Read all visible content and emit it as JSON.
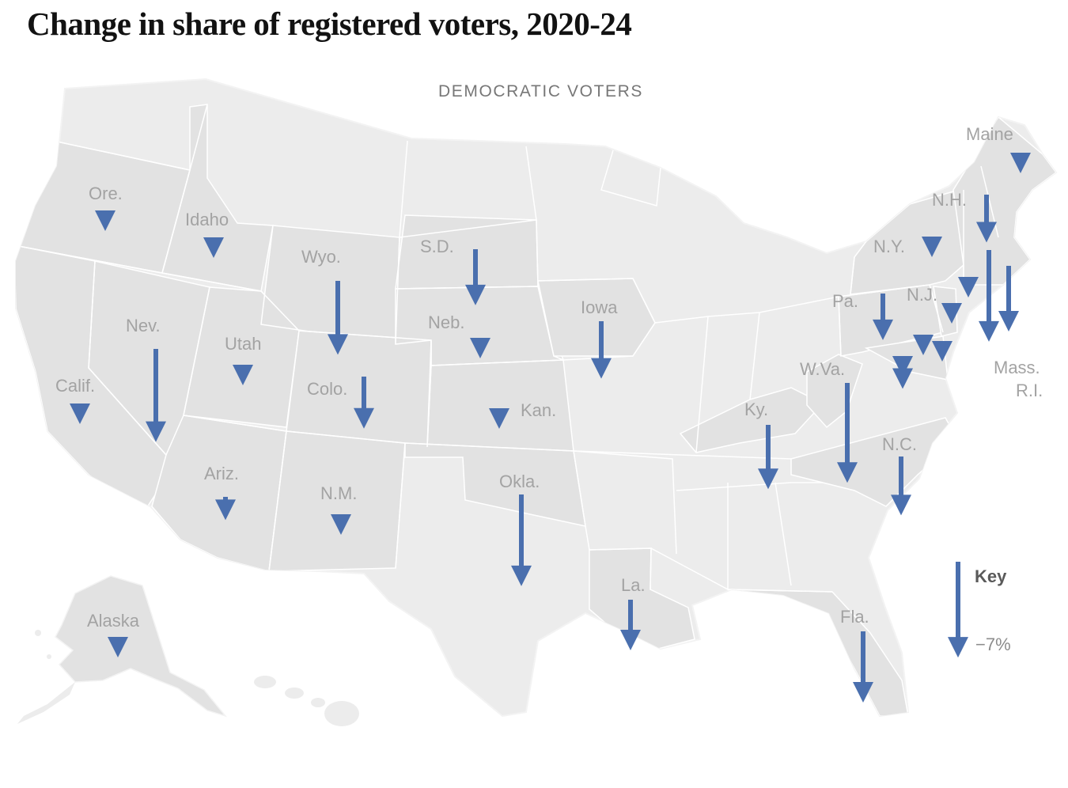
{
  "title": "Change in share of registered voters, 2020-24",
  "subtitle": "DEMOCRATIC VOTERS",
  "colors": {
    "arrow": "#4a6fae",
    "land": "#ececec",
    "highlight": "#e2e2e2",
    "border": "#ffffff",
    "label": "#a3a3a3"
  },
  "key": {
    "title": "Key",
    "value_label": "−7%",
    "value": -7
  },
  "states": [
    {
      "label": "Ore."
    },
    {
      "label": "Idaho"
    },
    {
      "label": "Wyo."
    },
    {
      "label": "S.D."
    },
    {
      "label": "Neb."
    },
    {
      "label": "Iowa"
    },
    {
      "label": "Nev."
    },
    {
      "label": "Utah"
    },
    {
      "label": "Calif."
    },
    {
      "label": "Colo."
    },
    {
      "label": "Kan."
    },
    {
      "label": "Ariz."
    },
    {
      "label": "N.M."
    },
    {
      "label": "Okla."
    },
    {
      "label": "La."
    },
    {
      "label": "Alaska"
    },
    {
      "label": "Ky."
    },
    {
      "label": "W.Va."
    },
    {
      "label": "N.C."
    },
    {
      "label": "Fla."
    },
    {
      "label": "Pa."
    },
    {
      "label": "N.J."
    },
    {
      "label": "N.Y."
    },
    {
      "label": "N.H."
    },
    {
      "label": "Maine"
    },
    {
      "label": "Mass."
    },
    {
      "label": "R.I."
    }
  ],
  "arrows": [
    {
      "state": "Ore.",
      "change": -1.4
    },
    {
      "state": "Idaho",
      "change": -1.0
    },
    {
      "state": "Wyo.",
      "change": -5.4
    },
    {
      "state": "S.D.",
      "change": -4.1
    },
    {
      "state": "Neb.",
      "change": -1.3
    },
    {
      "state": "Iowa",
      "change": -4.2
    },
    {
      "state": "Nev.",
      "change": -6.8
    },
    {
      "state": "Utah",
      "change": -0.2
    },
    {
      "state": "Calif.",
      "change": -0.2
    },
    {
      "state": "Colo.",
      "change": -3.8
    },
    {
      "state": "Kan.",
      "change": -0.2
    },
    {
      "state": "Ariz.",
      "change": -1.7
    },
    {
      "state": "N.M.",
      "change": -1.3
    },
    {
      "state": "Okla.",
      "change": -6.7
    },
    {
      "state": "La.",
      "change": -3.7
    },
    {
      "state": "Alaska",
      "change": -0.2
    },
    {
      "state": "Ky.",
      "change": -4.7
    },
    {
      "state": "W.Va.",
      "change": -7.3
    },
    {
      "state": "N.C.",
      "change": -4.3
    },
    {
      "state": "Fla.",
      "change": -5.2
    },
    {
      "state": "Pa.",
      "change": -3.4
    },
    {
      "state": "N.J.",
      "change": -1.0
    },
    {
      "state": "N.Y.",
      "change": -0.6
    },
    {
      "state": "N.H.",
      "change": -3.5
    },
    {
      "state": "Maine",
      "change": -0.6
    },
    {
      "state": "Mass.",
      "change": -6.7
    },
    {
      "state": "R.I.",
      "change": -4.8
    },
    {
      "state": "Del.",
      "change": -0.2
    },
    {
      "state": "Md.",
      "change": -1.3
    },
    {
      "state": "D.C.",
      "change": -2.4
    },
    {
      "state": "Va.",
      "change": -0.2
    },
    {
      "state": "Conn.",
      "change": -0.2
    }
  ]
}
